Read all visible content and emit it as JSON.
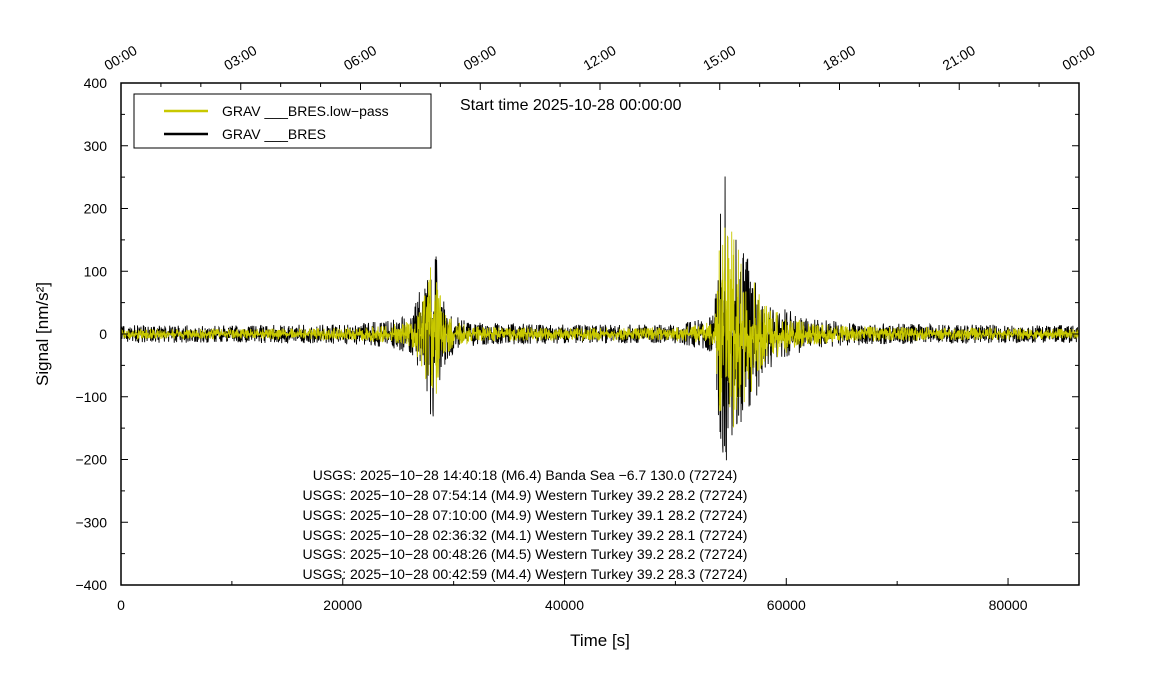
{
  "chart_data": {
    "type": "line",
    "start_time": "Start time 2025-10-28 00:00:00",
    "xlabel": "Time [s]",
    "ylabel": "Signal [nm/s²]",
    "xlim": [
      0,
      86400
    ],
    "ylim": [
      -400,
      400
    ],
    "x_ticks": [
      0,
      20000,
      40000,
      60000,
      80000
    ],
    "x_tick_labels": [
      "0",
      "20000",
      "40000",
      "60000",
      "80000"
    ],
    "y_ticks": [
      400,
      300,
      200,
      100,
      0,
      -100,
      -200,
      -300,
      -400
    ],
    "y_tick_labels": [
      "400",
      "300",
      "200",
      "100",
      "0",
      "−100",
      "−200",
      "−300",
      "−400"
    ],
    "top_ticks_s": [
      0,
      10800,
      21600,
      32400,
      43200,
      54000,
      64800,
      75600,
      86400
    ],
    "top_tick_labels": [
      "00:00",
      "03:00",
      "06:00",
      "09:00",
      "12:00",
      "15:00",
      "18:00",
      "21:00",
      "00:00"
    ],
    "grid": false,
    "legend_position": "top-left",
    "series": [
      {
        "name": "GRAV ___BRES.low−pass",
        "color": "#c8c800",
        "envelope": {
          "x": [
            0,
            5000,
            10000,
            15000,
            20000,
            24000,
            26000,
            27000,
            27500,
            28000,
            28500,
            29000,
            30000,
            32000,
            40000,
            50000,
            53500,
            54000,
            54500,
            55000,
            55500,
            56000,
            56500,
            57000,
            58000,
            60000,
            62000,
            66000,
            75000,
            86400
          ],
          "upper": [
            8,
            8,
            8,
            9,
            10,
            14,
            20,
            40,
            70,
            120,
            95,
            40,
            20,
            12,
            10,
            10,
            20,
            150,
            200,
            170,
            145,
            125,
            140,
            95,
            50,
            30,
            18,
            12,
            10,
            8
          ],
          "lower": [
            -8,
            -8,
            -8,
            -9,
            -10,
            -14,
            -20,
            -45,
            -80,
            -120,
            -95,
            -40,
            -20,
            -12,
            -10,
            -10,
            -20,
            -140,
            -175,
            -165,
            -140,
            -125,
            -130,
            -95,
            -50,
            -30,
            -18,
            -12,
            -10,
            -8
          ]
        }
      },
      {
        "name": "GRAV ___BRES",
        "color": "#000000",
        "envelope": {
          "x": [
            0,
            5000,
            10000,
            15000,
            20000,
            24000,
            26000,
            27000,
            27500,
            28000,
            28500,
            29000,
            30000,
            32000,
            40000,
            50000,
            53500,
            54000,
            54500,
            55000,
            55500,
            56000,
            56500,
            57000,
            58000,
            60000,
            62000,
            66000,
            75000,
            86400
          ],
          "upper": [
            14,
            14,
            14,
            15,
            16,
            22,
            30,
            80,
            85,
            142,
            130,
            55,
            30,
            18,
            15,
            15,
            30,
            205,
            275,
            180,
            150,
            130,
            150,
            120,
            60,
            40,
            25,
            18,
            15,
            14
          ],
          "lower": [
            -14,
            -14,
            -14,
            -15,
            -16,
            -22,
            -30,
            -65,
            -85,
            -150,
            -130,
            -55,
            -30,
            -18,
            -15,
            -15,
            -30,
            -165,
            -215,
            -180,
            -160,
            -150,
            -180,
            -120,
            -60,
            -40,
            -25,
            -18,
            -15,
            -14
          ]
        }
      }
    ],
    "annotations": [
      "USGS: 2025−10−28 14:40:18 (M6.4) Banda Sea −6.7 130.0 (72724)",
      "USGS: 2025−10−28 07:54:14 (M4.9) Western Turkey 39.2 28.2 (72724)",
      "USGS: 2025−10−28 07:10:00 (M4.9) Western Turkey 39.1 28.2 (72724)",
      "USGS: 2025−10−28 02:36:32 (M4.1) Western Turkey 39.2 28.1 (72724)",
      "USGS: 2025−10−28 00:48:26 (M4.5) Western Turkey 39.2 28.2 (72724)",
      "USGS: 2025−10−28 00:42:59 (M4.4) Western Turkey 39.2 28.3 (72724)"
    ]
  }
}
